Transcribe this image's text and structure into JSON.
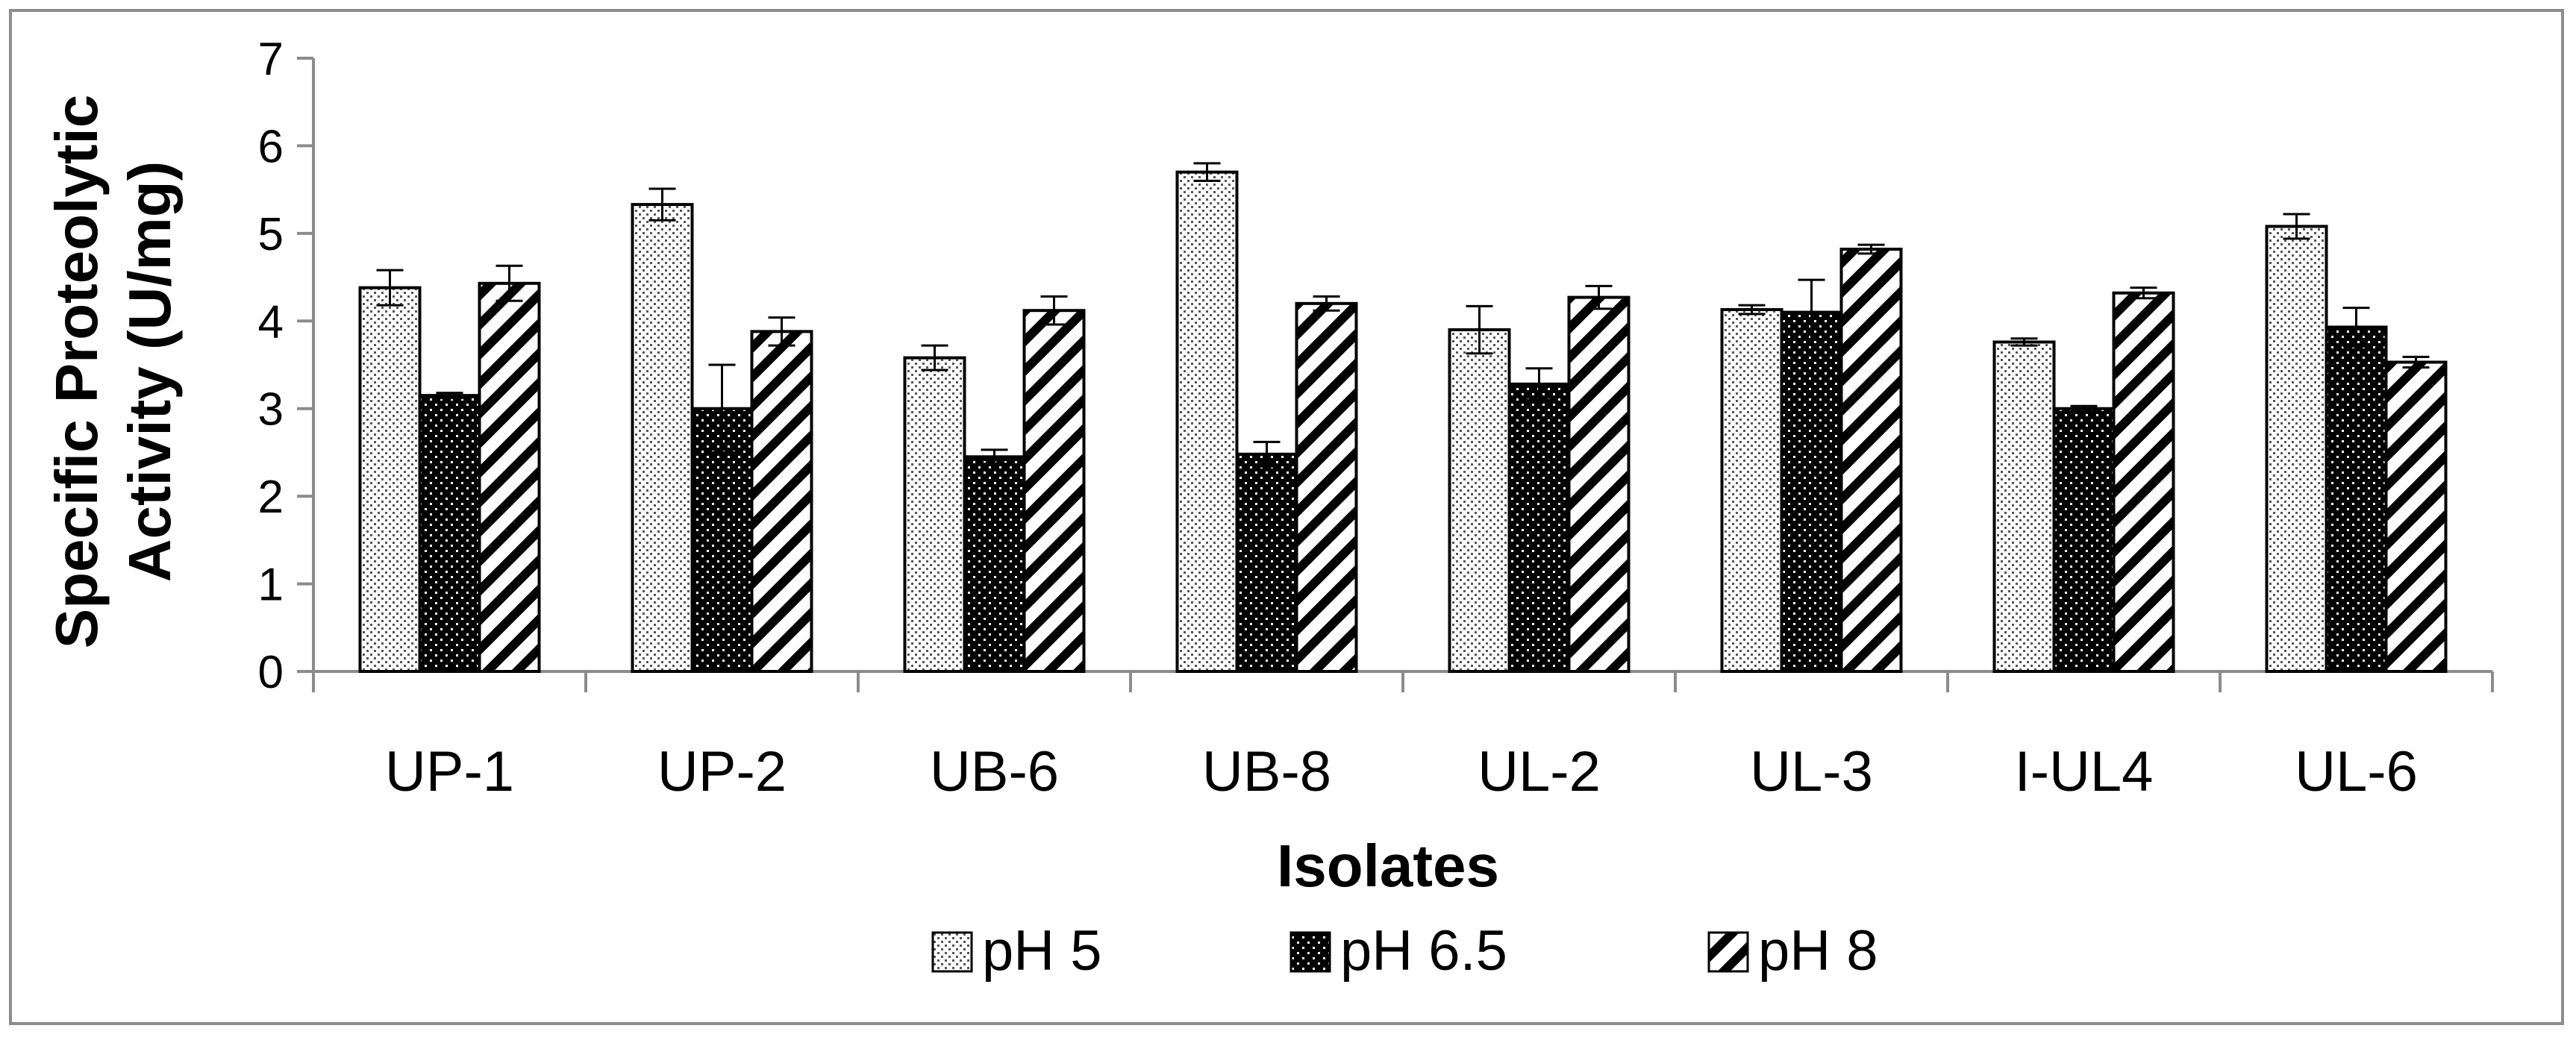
{
  "chart_data": {
    "type": "bar",
    "title": "",
    "xlabel": "Isolates",
    "ylabel_lines": [
      "Specific Proteolytic",
      "Activity (U/mg)"
    ],
    "ylim": [
      0,
      7
    ],
    "yticks": [
      0,
      1,
      2,
      3,
      4,
      5,
      6,
      7
    ],
    "categories": [
      "UP-1",
      "UP-2",
      "UB-6",
      "UB-8",
      "UL-2",
      "UL-3",
      "I-UL4",
      "UL-6"
    ],
    "series": [
      {
        "name": "pH 5",
        "pattern": "dots-light",
        "values": [
          4.38,
          5.33,
          3.58,
          5.7,
          3.9,
          4.13,
          3.76,
          5.08
        ],
        "errors": [
          0.2,
          0.18,
          0.14,
          0.1,
          0.27,
          0.05,
          0.04,
          0.14
        ]
      },
      {
        "name": "pH 6.5",
        "pattern": "dots-dark",
        "values": [
          3.15,
          3.0,
          2.45,
          2.48,
          3.28,
          4.1,
          3.0,
          3.93
        ],
        "errors": [
          0.03,
          0.5,
          0.08,
          0.14,
          0.18,
          0.37,
          0.03,
          0.22
        ]
      },
      {
        "name": "pH 8",
        "pattern": "diagonal",
        "values": [
          4.43,
          3.88,
          4.12,
          4.2,
          4.27,
          4.82,
          4.32,
          3.53
        ],
        "errors": [
          0.2,
          0.16,
          0.16,
          0.08,
          0.13,
          0.05,
          0.06,
          0.06
        ]
      }
    ],
    "legend_position": "bottom",
    "grid": false
  }
}
